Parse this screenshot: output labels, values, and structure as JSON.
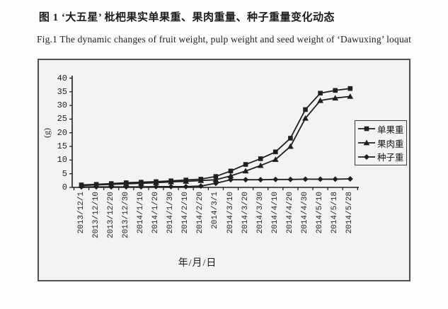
{
  "page": {
    "title_cn": "图 1  ‘大五星’ 枇杷果实单果重、果肉重量、种子重量变化动态",
    "title_en": "Fig.1 The dynamic changes of fruit weight, pulp weight and seed weight of  ‘Dawuxing’  loquat"
  },
  "chart_data": {
    "type": "line",
    "title": "",
    "xlabel": "年/月/日",
    "ylabel": "(g)",
    "ylim": [
      0,
      40
    ],
    "ytick_step": 5,
    "grid": false,
    "legend_position": "right",
    "line_color": "#1f1f1f",
    "categories": [
      "2013/12/1",
      "2013/12/10",
      "2013/12/20",
      "2013/12/30",
      "2014/1/10",
      "2014/1/20",
      "2014/1/30",
      "2014/2/10",
      "2014/2/20",
      "2014/3/1",
      "2014/3/10",
      "2014/3/20",
      "2014/3/30",
      "2014/4/10",
      "2014/4/20",
      "2014/4/30",
      "2014/5/10",
      "2014/5/18",
      "2014/5/28"
    ],
    "series": [
      {
        "key": "fruit-weight",
        "name": "单果重",
        "marker": "square",
        "values": [
          0.9,
          1.1,
          1.4,
          1.7,
          1.9,
          2.1,
          2.4,
          2.7,
          3.0,
          4.0,
          6.0,
          8.4,
          10.5,
          13.0,
          18.0,
          28.5,
          34.5,
          35.5,
          36.2
        ]
      },
      {
        "key": "pulp-weight",
        "name": "果肉重",
        "marker": "triangle",
        "values": [
          0.7,
          0.9,
          1.1,
          1.3,
          1.5,
          1.7,
          2.0,
          2.2,
          2.5,
          2.8,
          4.2,
          6.0,
          8.0,
          10.2,
          15.0,
          25.3,
          31.8,
          32.7,
          33.3
        ]
      },
      {
        "key": "seed-weight",
        "name": "种子重",
        "marker": "diamond",
        "values": [
          0.2,
          0.2,
          0.2,
          0.2,
          0.2,
          0.3,
          0.3,
          0.3,
          0.5,
          1.5,
          2.8,
          2.8,
          2.8,
          2.9,
          2.9,
          3.0,
          3.0,
          3.0,
          3.1
        ]
      }
    ]
  }
}
